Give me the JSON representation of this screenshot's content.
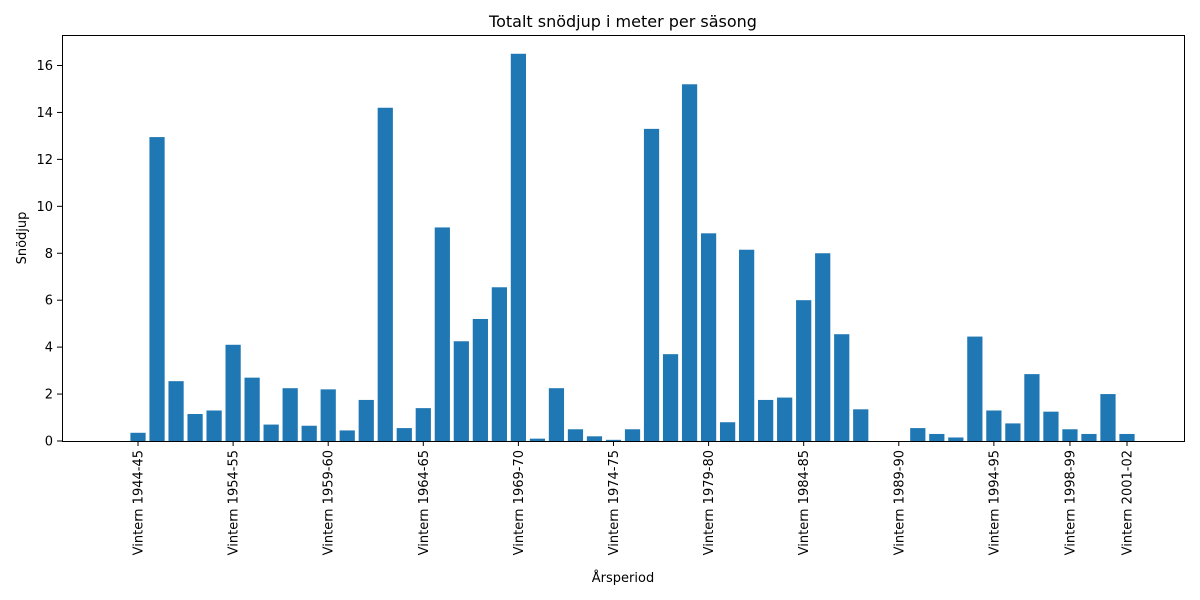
{
  "chart_data": {
    "type": "bar",
    "title": "Totalt snödjup i meter per säsong",
    "xlabel": "Årsperiod",
    "ylabel": "Snödjup",
    "ylim": [
      0,
      17.3
    ],
    "yticks": [
      0,
      2,
      4,
      6,
      8,
      10,
      12,
      14,
      16
    ],
    "color": "#1f77b4",
    "grid": false,
    "labeled_ticks": [
      {
        "index": 1,
        "label": "Vintern 1944-45"
      },
      {
        "index": 6,
        "label": "Vintern 1954-55"
      },
      {
        "index": 11,
        "label": "Vintern 1959-60"
      },
      {
        "index": 16,
        "label": "Vintern 1964-65"
      },
      {
        "index": 21,
        "label": "Vintern 1969-70"
      },
      {
        "index": 26,
        "label": "Vintern 1974-75"
      },
      {
        "index": 31,
        "label": "Vintern 1979-80"
      },
      {
        "index": 36,
        "label": "Vintern 1984-85"
      },
      {
        "index": 41,
        "label": "Vintern 1989-90"
      },
      {
        "index": 46,
        "label": "Vintern 1994-95"
      },
      {
        "index": 50,
        "label": "Vintern 1998-99"
      },
      {
        "index": 53,
        "label": "Vintern 2001-02"
      }
    ],
    "values": [
      0,
      0.35,
      12.95,
      2.55,
      1.15,
      1.3,
      4.1,
      2.7,
      0.7,
      2.25,
      0.65,
      2.2,
      0.45,
      1.75,
      14.2,
      0.55,
      1.4,
      9.1,
      4.25,
      5.2,
      6.55,
      16.5,
      0.1,
      2.25,
      0.5,
      0.2,
      0.05,
      0.5,
      13.3,
      3.7,
      15.2,
      8.85,
      0.8,
      8.15,
      1.75,
      1.85,
      6.0,
      8.0,
      4.55,
      1.35,
      0,
      0,
      0.55,
      0.3,
      0.15,
      4.45,
      1.3,
      0.75,
      2.85,
      1.25,
      0.5,
      0.3,
      2.0,
      0.3
    ]
  }
}
